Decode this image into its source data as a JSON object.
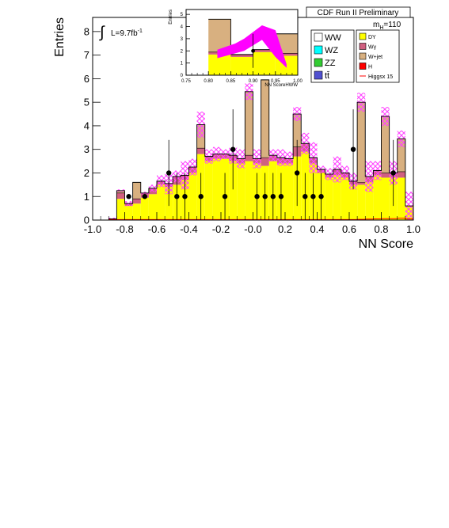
{
  "header": {
    "title": "CDF Run II Preliminary"
  },
  "annotations": {
    "integral_sign": "∫",
    "luminosity": "L=9.7fb",
    "luminosity_exp": "-1",
    "mass_main": "m",
    "mass_sub": "H",
    "mass_value": "=110"
  },
  "legend": {
    "left": [
      {
        "label": "WW",
        "color": "#ffffff"
      },
      {
        "label": "WZ",
        "color": "#00ffff"
      },
      {
        "label": "ZZ",
        "color": "#33cc33"
      },
      {
        "label": "tt̄",
        "color": "#5050d0"
      }
    ],
    "right": [
      {
        "label": "DY",
        "color": "#ffff00"
      },
      {
        "label": "Wγ",
        "color": "#d06080"
      },
      {
        "label": "W+jet",
        "color": "#d8b080"
      },
      {
        "label": "H",
        "color": "#ff0000"
      },
      {
        "label": "Higgsx 15",
        "color": "#ff0000",
        "line": true
      }
    ]
  },
  "chart_data": [
    {
      "type": "bar",
      "stacked": true,
      "xlabel": "NN Score",
      "ylabel": "Entries",
      "xlim": [
        -1.0,
        1.0
      ],
      "ylim": [
        0,
        8.6
      ],
      "xticks": [
        "-1.0",
        "-0.8",
        "-0.6",
        "-0.4",
        "-0.2",
        "-0.0",
        "0.2",
        "0.4",
        "0.6",
        "0.8",
        "1.0"
      ],
      "yticks": [
        "0",
        "1",
        "2",
        "3",
        "4",
        "5",
        "6",
        "7",
        "8"
      ],
      "bins": {
        "start": -0.9,
        "width": 0.05,
        "count": 38
      },
      "series": [
        {
          "name": "DY",
          "color": "#ffff00",
          "values": [
            0.05,
            0.9,
            0.6,
            0.7,
            0.95,
            1.1,
            1.5,
            1.4,
            1.5,
            1.7,
            2.0,
            2.8,
            2.5,
            2.6,
            2.6,
            2.5,
            2.4,
            2.5,
            2.4,
            2.3,
            2.5,
            2.4,
            2.4,
            2.7,
            2.9,
            2.4,
            2.0,
            1.8,
            1.9,
            1.8,
            1.5,
            1.5,
            1.6,
            1.9,
            1.8,
            1.8,
            1.8,
            0.6
          ]
        },
        {
          "name": "Wγ",
          "color": "#d06080",
          "values": [
            0,
            0.25,
            0.1,
            0.2,
            0.2,
            0.25,
            0.15,
            0.15,
            0.35,
            0.2,
            0.25,
            0.25,
            0.2,
            0.2,
            0.2,
            0.25,
            0.2,
            0.25,
            0.2,
            0.35,
            0.25,
            0.25,
            0.2,
            0.4,
            0.35,
            0.25,
            0.15,
            0.15,
            0.25,
            0.2,
            0.15,
            0.1,
            0.25,
            0.2,
            0.2,
            0.2,
            0.25,
            0
          ]
        },
        {
          "name": "W+jet",
          "color": "#d8b080",
          "values": [
            0,
            0.1,
            0,
            0.7,
            0,
            0,
            0,
            0,
            0,
            0,
            0,
            1.0,
            0,
            0,
            0,
            0,
            0,
            2.7,
            0,
            3.3,
            0,
            0,
            0,
            1.4,
            0,
            0,
            0,
            0,
            0,
            0,
            0,
            3.4,
            0,
            0,
            2.4,
            0,
            1.4,
            0
          ]
        }
      ],
      "uncertainty": {
        "color": "#ff44ff",
        "pattern": "hatch",
        "values": [
          0.1,
          1.3,
          0.8,
          1.5,
          1.2,
          1.5,
          1.9,
          2.0,
          2.1,
          2.5,
          2.6,
          4.6,
          3.0,
          3.1,
          3.0,
          3.1,
          3.0,
          5.8,
          3.0,
          4.5,
          3.0,
          3.0,
          2.9,
          4.8,
          3.7,
          3.3,
          2.3,
          2.2,
          2.7,
          2.3,
          2.0,
          5.4,
          2.5,
          2.5,
          4.8,
          2.5,
          3.8,
          1.2
        ]
      },
      "higgs_signal": {
        "name": "H",
        "color": "#ff0000",
        "values": [
          0.02,
          0.02,
          0.02,
          0.02,
          0.02,
          0.02,
          0.02,
          0.02,
          0.02,
          0.02,
          0.02,
          0.02,
          0.02,
          0.02,
          0.02,
          0.02,
          0.02,
          0.02,
          0.02,
          0.02,
          0.02,
          0.02,
          0.02,
          0.02,
          0.02,
          0.02,
          0.02,
          0.02,
          0.02,
          0.02,
          0.02,
          0.03,
          0.04,
          0.05,
          0.06,
          0.06,
          0.08,
          0.05
        ]
      },
      "data_points": [
        {
          "x": -0.775,
          "y": 1,
          "err": 0
        },
        {
          "x": -0.675,
          "y": 1,
          "err": 0
        },
        {
          "x": -0.525,
          "y": 2,
          "err": 1.4
        },
        {
          "x": -0.475,
          "y": 1,
          "err": 1.0
        },
        {
          "x": -0.425,
          "y": 1,
          "err": 1.0
        },
        {
          "x": -0.325,
          "y": 1,
          "err": 1.0
        },
        {
          "x": -0.175,
          "y": 1,
          "err": 1.0
        },
        {
          "x": -0.125,
          "y": 3,
          "err": 1.7
        },
        {
          "x": 0.025,
          "y": 1,
          "err": 1.0
        },
        {
          "x": 0.075,
          "y": 1,
          "err": 1.0
        },
        {
          "x": 0.125,
          "y": 1,
          "err": 1.0
        },
        {
          "x": 0.175,
          "y": 1,
          "err": 1.0
        },
        {
          "x": 0.275,
          "y": 2,
          "err": 1.4
        },
        {
          "x": 0.325,
          "y": 1,
          "err": 1.0
        },
        {
          "x": 0.375,
          "y": 1,
          "err": 1.0
        },
        {
          "x": 0.425,
          "y": 1,
          "err": 1.0
        },
        {
          "x": 0.625,
          "y": 3,
          "err": 1.7
        },
        {
          "x": 0.875,
          "y": 2,
          "err": 1.4
        }
      ]
    },
    {
      "type": "bar",
      "inset": true,
      "xlabel": "NN ScoreHWW",
      "ylabel": "Entries",
      "xlim": [
        0.75,
        1.0
      ],
      "ylim": [
        0,
        5.4
      ],
      "xticks": [
        "0.75",
        "0.80",
        "0.85",
        "0.90",
        "0.95",
        "1.00"
      ],
      "yticks": [
        "0",
        "1",
        "2",
        "3",
        "4",
        "5"
      ],
      "bins": {
        "start": 0.8,
        "width": 0.05,
        "count": 4
      },
      "series": [
        {
          "name": "DY",
          "color": "#ffff00",
          "values": [
            1.7,
            1.5,
            1.9,
            1.6
          ]
        },
        {
          "name": "Wγ",
          "color": "#d06080",
          "values": [
            0.2,
            0.2,
            0.2,
            0.2
          ]
        },
        {
          "name": "W+jet",
          "color": "#d8b080",
          "values": [
            2.7,
            0,
            0,
            1.6
          ]
        }
      ],
      "higgs_signal": {
        "name": "Higgsx 15",
        "color": "#ff00ff",
        "x": [
          0.82,
          0.86,
          0.88,
          0.92,
          0.95,
          0.975
        ],
        "low": [
          1.4,
          1.8,
          2.0,
          2.9,
          1.5,
          0.6
        ],
        "high": [
          2.1,
          2.6,
          3.0,
          4.1,
          3.7,
          0.9
        ]
      },
      "data_points": [
        {
          "x": 0.9,
          "y": 2,
          "err": 1.4
        }
      ]
    }
  ]
}
